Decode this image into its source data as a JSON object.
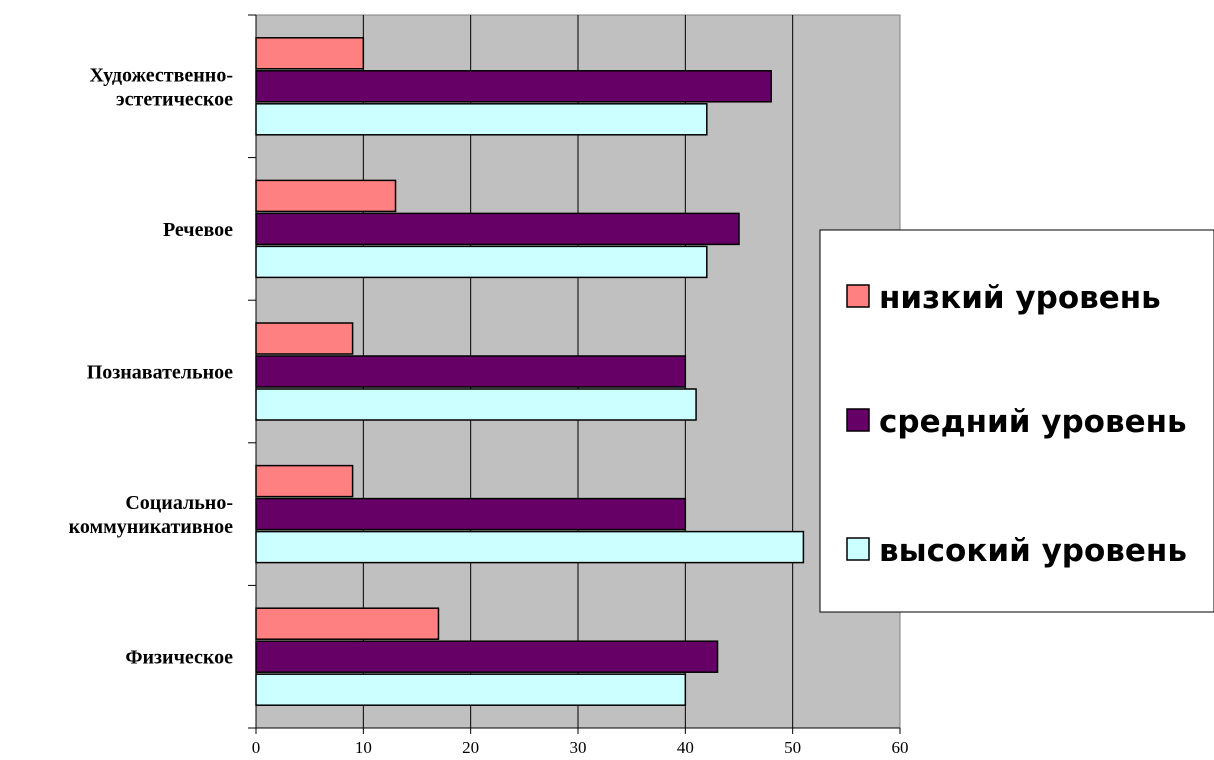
{
  "chart_data": {
    "type": "bar",
    "orientation": "horizontal",
    "categories": [
      "Физическое",
      "Социально-коммуникативное",
      "Познавательное",
      "Речевое",
      "Художественно-эстетическое"
    ],
    "category_label_lines": [
      [
        "Физическое"
      ],
      [
        "Социально-",
        "коммуникативное"
      ],
      [
        "Познавательное"
      ],
      [
        "Речевое"
      ],
      [
        "Художественно-",
        "эстетическое"
      ]
    ],
    "series": [
      {
        "name": "низкий уровень",
        "color": "#ff8080",
        "values": [
          17,
          9,
          9,
          13,
          10
        ]
      },
      {
        "name": "средний уровень",
        "color": "#660066",
        "values": [
          43,
          40,
          40,
          45,
          48
        ]
      },
      {
        "name": "высокий уровень",
        "color": "#ccffff",
        "values": [
          40,
          51,
          41,
          42,
          42
        ]
      }
    ],
    "x_ticks": [
      "0",
      "10",
      "20",
      "30",
      "40",
      "50",
      "60"
    ],
    "xlim": [
      0,
      60
    ],
    "grid": true,
    "plot_background": "#c0c0c0",
    "legend_position": "right"
  }
}
